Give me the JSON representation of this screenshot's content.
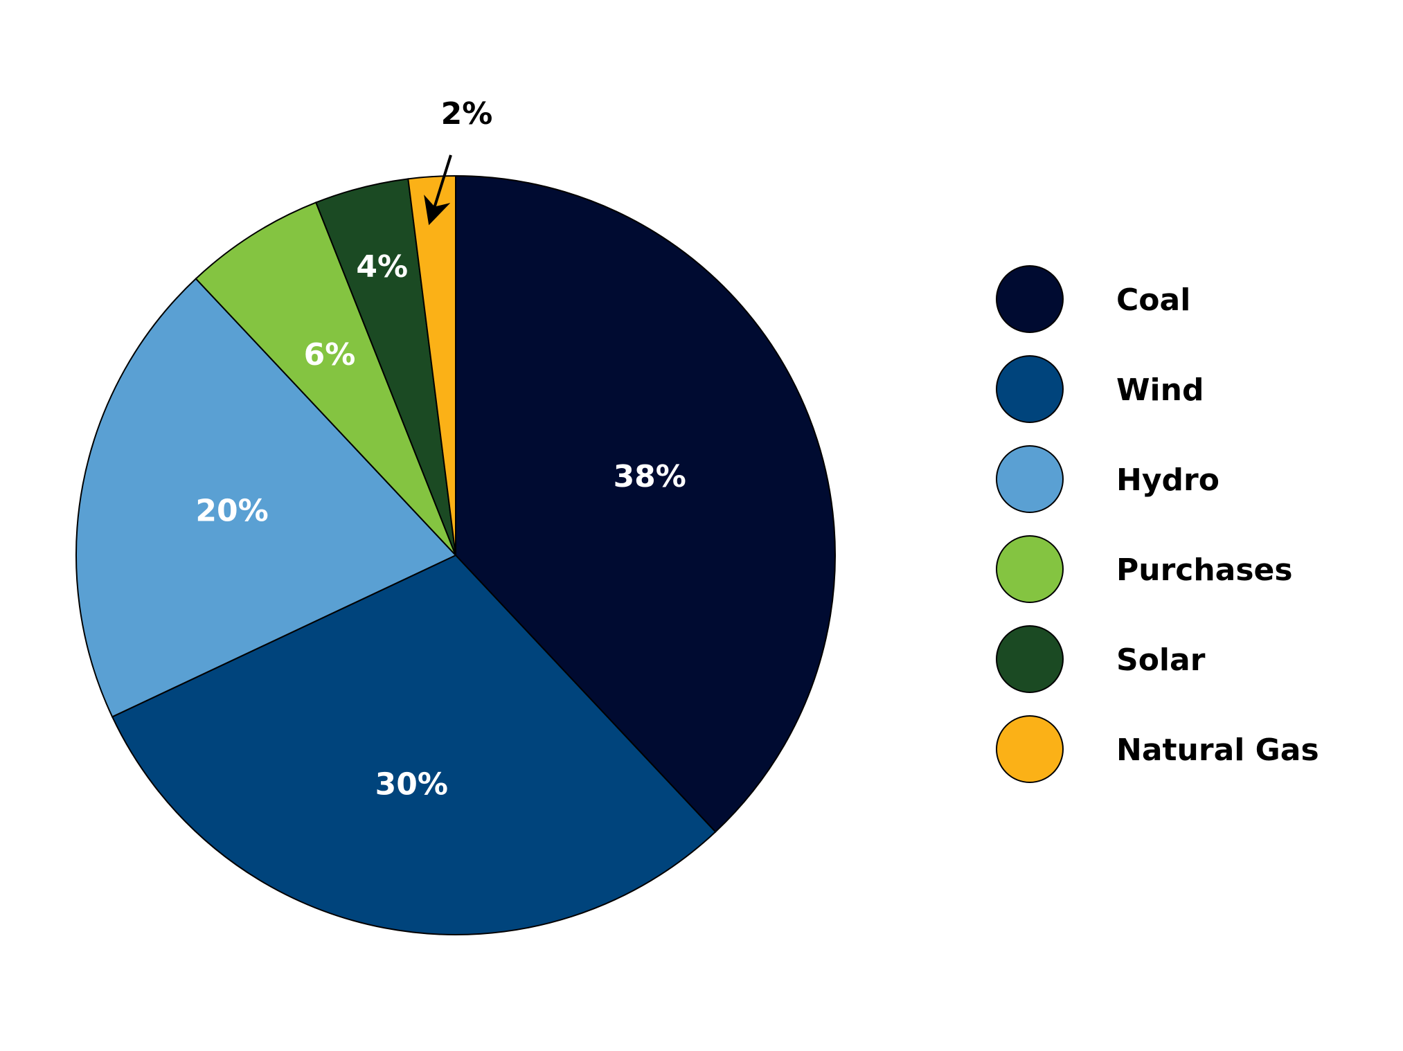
{
  "chart_data": {
    "type": "pie",
    "title": "",
    "start": "top",
    "direction": "clockwise",
    "legend_position": "right",
    "slices": [
      {
        "label": "Coal",
        "value": 38,
        "display": "38%",
        "color": "#000b31",
        "label_color": "#ffffff"
      },
      {
        "label": "Wind",
        "value": 30,
        "display": "30%",
        "color": "#00447c",
        "label_color": "#ffffff"
      },
      {
        "label": "Hydro",
        "value": 20,
        "display": "20%",
        "color": "#5aa0d3",
        "label_color": "#ffffff"
      },
      {
        "label": "Purchases",
        "value": 6,
        "display": "6%",
        "color": "#84c441",
        "label_color": "#ffffff"
      },
      {
        "label": "Solar",
        "value": 4,
        "display": "4%",
        "color": "#1b4a23",
        "label_color": "#ffffff"
      },
      {
        "label": "Natural Gas",
        "value": 2,
        "display": "2%",
        "color": "#fbb117",
        "label_color": "#000000",
        "callout_arrow": true
      }
    ]
  }
}
